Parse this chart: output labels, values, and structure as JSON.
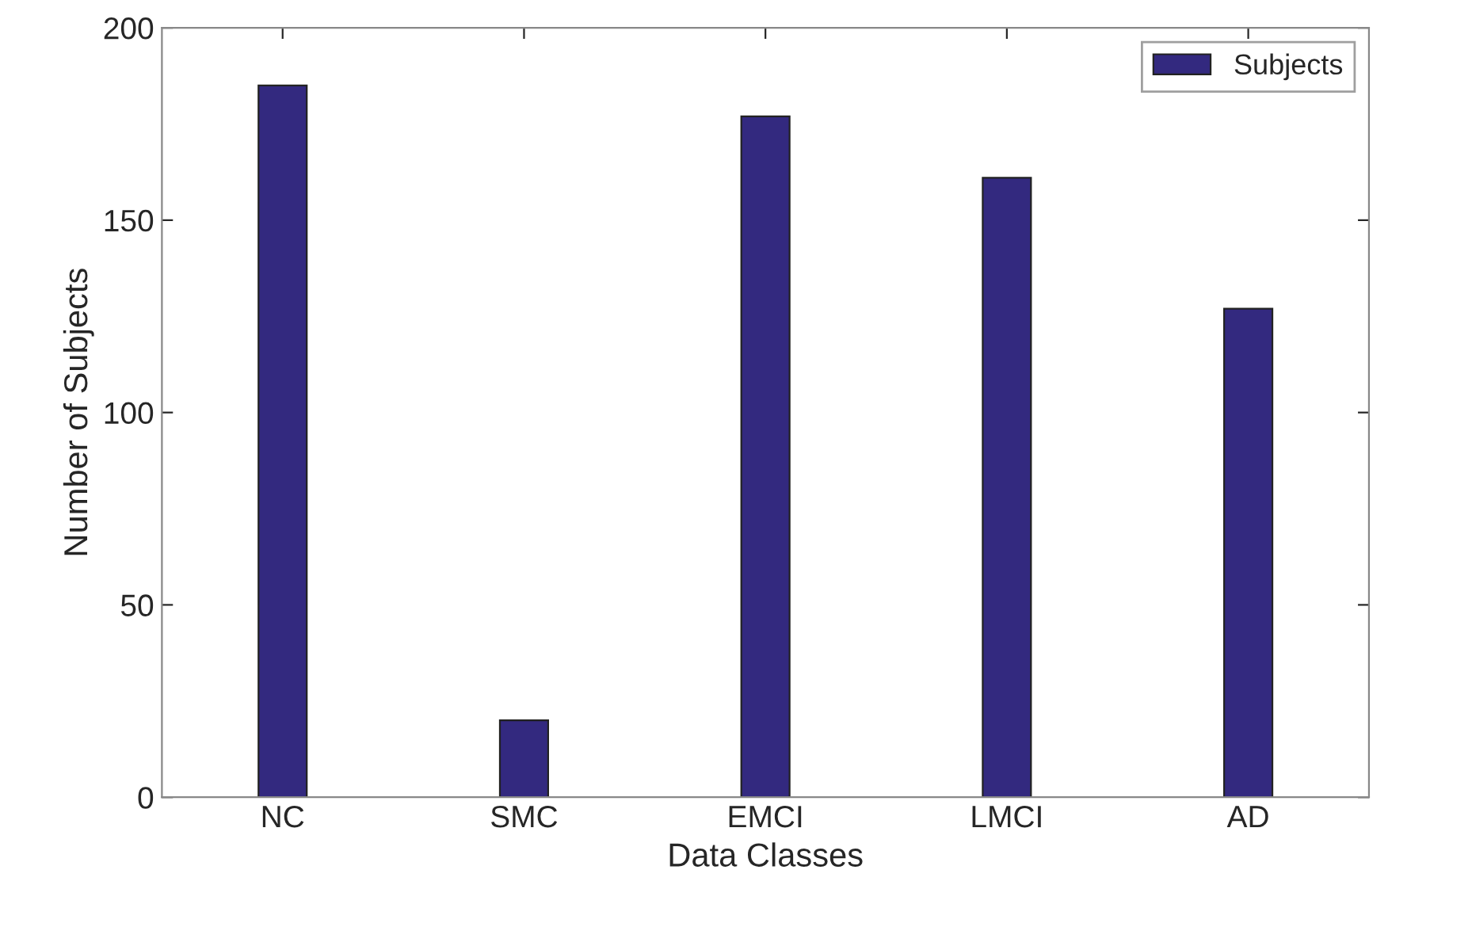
{
  "chart_data": {
    "type": "bar",
    "xlabel": "Data Classes",
    "ylabel": "Number of Subjects",
    "categories": [
      "NC",
      "SMC",
      "EMCI",
      "LMCI",
      "AD"
    ],
    "series": [
      {
        "name": "Subjects",
        "color": "#33297f",
        "values": [
          185,
          20,
          177,
          161,
          127
        ]
      }
    ],
    "ylim": [
      0,
      200
    ],
    "yticks": [
      0,
      50,
      100,
      150,
      200
    ],
    "grid": false,
    "legend": "top right"
  }
}
